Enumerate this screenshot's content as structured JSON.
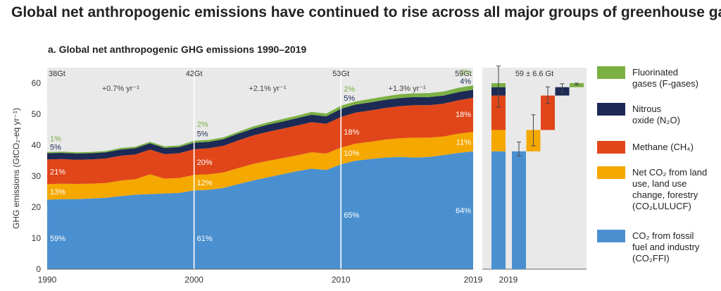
{
  "title": "Global net anthropogenic emissions have continued to rise across all major groups of greenhouse gases.",
  "panel_title": "a. Global net anthropogenic GHG emissions 1990–2019",
  "colors": {
    "co2ffi": "#4a90d0",
    "co2lulucf": "#f5a800",
    "ch4": "#e0461a",
    "n2o": "#1c2a55",
    "fgas": "#7bb043",
    "panel_bg": "#e9e9e9"
  },
  "legend": [
    {
      "key": "fgas",
      "text": "Fluorinated\ngases (F-gases)"
    },
    {
      "key": "n2o",
      "text": "Nitrous\noxide (N₂O)"
    },
    {
      "key": "ch4",
      "text": "Methane (CH₄)"
    },
    {
      "key": "co2lulucf",
      "text": "Net CO₂ from land\nuse, land use\nchange, forestry\n(CO₂LULUCF)"
    },
    {
      "key": "co2ffi",
      "text": "CO₂ from fossil\nfuel and industry\n(CO₂FFI)"
    }
  ],
  "chart_data": [
    {
      "type": "area",
      "stacked": true,
      "title": "a. Global net anthropogenic GHG emissions 1990–2019",
      "ylabel": "GHG emissions (GtCO₂-eq yr⁻¹)",
      "xlim": [
        1990,
        2019
      ],
      "ylim": [
        0,
        65
      ],
      "yticks": [
        0,
        10,
        20,
        30,
        40,
        50,
        60
      ],
      "xticks": [
        1990,
        2000,
        2010,
        2019
      ],
      "grid": false,
      "x": [
        1990,
        1991,
        1992,
        1993,
        1994,
        1995,
        1996,
        1997,
        1998,
        1999,
        2000,
        2001,
        2002,
        2003,
        2004,
        2005,
        2006,
        2007,
        2008,
        2009,
        2010,
        2011,
        2012,
        2013,
        2014,
        2015,
        2016,
        2017,
        2018,
        2019
      ],
      "series": [
        {
          "name": "CO₂ from fossil fuel and industry (CO₂FFI)",
          "color_key": "co2ffi",
          "values": [
            22.4,
            22.6,
            22.6,
            22.8,
            23.0,
            23.6,
            24.0,
            24.2,
            24.4,
            24.6,
            25.4,
            25.6,
            26.2,
            27.4,
            28.6,
            29.6,
            30.6,
            31.6,
            32.4,
            32.0,
            33.8,
            35.0,
            35.5,
            36.0,
            36.2,
            36.0,
            36.2,
            36.8,
            37.5,
            38.0
          ]
        },
        {
          "name": "Net CO₂ from land use, land use change, forestry (CO₂LULUCF)",
          "color_key": "co2lulucf",
          "values": [
            5.0,
            5.0,
            4.9,
            4.8,
            4.8,
            5.0,
            5.0,
            6.4,
            4.8,
            4.8,
            5.0,
            5.0,
            5.0,
            5.2,
            5.3,
            5.3,
            5.2,
            5.1,
            5.3,
            5.3,
            5.4,
            5.5,
            5.6,
            5.8,
            6.0,
            6.4,
            6.2,
            6.0,
            6.2,
            6.3
          ]
        },
        {
          "name": "Methane (CH₄)",
          "color_key": "ch4",
          "values": [
            8.0,
            7.9,
            7.8,
            7.8,
            7.9,
            8.0,
            8.0,
            8.0,
            7.9,
            8.0,
            8.3,
            8.4,
            8.6,
            8.9,
            9.2,
            9.4,
            9.5,
            9.6,
            9.7,
            9.6,
            9.9,
            10.0,
            10.1,
            10.2,
            10.4,
            10.5,
            10.5,
            10.6,
            10.8,
            11.0
          ]
        },
        {
          "name": "Nitrous oxide (N₂O)",
          "color_key": "n2o",
          "values": [
            2.0,
            2.0,
            2.0,
            2.0,
            2.0,
            2.0,
            2.0,
            2.0,
            2.0,
            2.0,
            2.1,
            2.1,
            2.1,
            2.2,
            2.2,
            2.3,
            2.3,
            2.4,
            2.4,
            2.4,
            2.6,
            2.6,
            2.6,
            2.6,
            2.6,
            2.6,
            2.6,
            2.6,
            2.6,
            2.6
          ]
        },
        {
          "name": "Fluorinated gases (F-gases)",
          "color_key": "fgas",
          "values": [
            0.4,
            0.4,
            0.4,
            0.4,
            0.4,
            0.5,
            0.5,
            0.5,
            0.5,
            0.5,
            0.6,
            0.6,
            0.6,
            0.6,
            0.7,
            0.7,
            0.8,
            0.8,
            0.9,
            0.9,
            1.0,
            1.0,
            1.1,
            1.1,
            1.2,
            1.2,
            1.3,
            1.3,
            1.4,
            1.4
          ]
        }
      ],
      "totals": [
        {
          "x": 1990,
          "label": "38Gt"
        },
        {
          "x": 2000,
          "label": "42Gt"
        },
        {
          "x": 2010,
          "label": "53Gt"
        },
        {
          "x": 2019,
          "label": "59Gt"
        }
      ],
      "growth_rates": [
        {
          "x": 1995,
          "label": "+0.7% yr⁻¹"
        },
        {
          "x": 2005,
          "label": "+2.1% yr⁻¹"
        },
        {
          "x": 2014.5,
          "label": "+1.3% yr⁻¹"
        }
      ],
      "vlines": [
        2000,
        2010
      ],
      "shares": [
        {
          "year": 1990,
          "labels": [
            {
              "text": "59%",
              "y": 10,
              "color_key": "white"
            },
            {
              "text": "13%",
              "y": 25,
              "color_key": "white"
            },
            {
              "text": "21%",
              "y": 31.5,
              "color_key": "white"
            },
            {
              "text": "5%",
              "y": 39.4,
              "color_key": "n2o"
            },
            {
              "text": "1%",
              "y": 42.2,
              "color_key": "fgas"
            }
          ]
        },
        {
          "year": 2000,
          "labels": [
            {
              "text": "61%",
              "y": 10,
              "color_key": "white"
            },
            {
              "text": "12%",
              "y": 28,
              "color_key": "white"
            },
            {
              "text": "20%",
              "y": 34.5,
              "color_key": "white"
            },
            {
              "text": "5%",
              "y": 43.8,
              "color_key": "n2o"
            },
            {
              "text": "2%",
              "y": 46.8,
              "color_key": "fgas"
            }
          ]
        },
        {
          "year": 2010,
          "labels": [
            {
              "text": "65%",
              "y": 17.5,
              "color_key": "white"
            },
            {
              "text": "10%",
              "y": 37.5,
              "color_key": "white"
            },
            {
              "text": "18%",
              "y": 44.3,
              "color_key": "white"
            },
            {
              "text": "5%",
              "y": 55.2,
              "color_key": "n2o"
            },
            {
              "text": "2%",
              "y": 58.2,
              "color_key": "fgas"
            }
          ]
        },
        {
          "year": 2019,
          "labels": [
            {
              "text": "64%",
              "y": 19,
              "color_key": "white"
            },
            {
              "text": "11%",
              "y": 41,
              "color_key": "white"
            },
            {
              "text": "18%",
              "y": 50,
              "color_key": "white"
            },
            {
              "text": "4%",
              "y": 60.7,
              "color_key": "n2o"
            },
            {
              "text": "2%",
              "y": 63.6,
              "color_key": "fgas"
            }
          ]
        }
      ]
    },
    {
      "type": "bar",
      "subtype": "waterfall",
      "xlabel": "2019",
      "ylim": [
        0,
        65
      ],
      "total_label": "59 ± 6.6 Gt",
      "total": {
        "value": 59,
        "err_low": 52.3,
        "err_high": 65.5
      },
      "segments": [
        {
          "name": "CO₂FFI",
          "color_key": "co2ffi",
          "bottom": 0,
          "top": 38.0,
          "err": [
            36.5,
            41.0
          ]
        },
        {
          "name": "CO₂LULUCF",
          "color_key": "co2lulucf",
          "bottom": 38.0,
          "top": 44.9,
          "err": [
            39.8,
            49.8
          ]
        },
        {
          "name": "CH₄",
          "color_key": "ch4",
          "bottom": 44.9,
          "top": 56.0,
          "err": [
            53.5,
            58.8
          ]
        },
        {
          "name": "N₂O",
          "color_key": "n2o",
          "bottom": 56.0,
          "top": 58.7,
          "err": [
            57.0,
            59.8
          ]
        },
        {
          "name": "F-gases",
          "color_key": "fgas",
          "bottom": 58.7,
          "top": 60.0,
          "err": [
            59.4,
            60.0
          ]
        }
      ],
      "stack_bar": {
        "bottom": 0,
        "top": 60.0
      }
    }
  ]
}
